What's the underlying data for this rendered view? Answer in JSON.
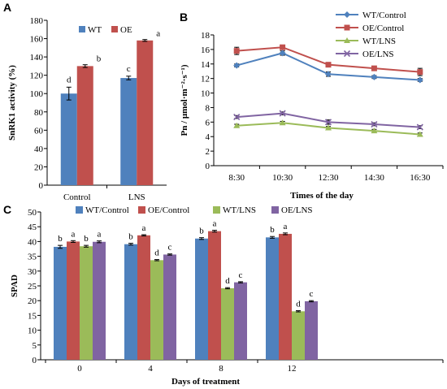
{
  "colors": {
    "WT_Control": "#4f81bd",
    "OE_Control": "#c0504d",
    "WT_LNS": "#9bbb59",
    "OE_LNS": "#8064a2",
    "axis": "#000000"
  },
  "chart_data": [
    {
      "panel": "A",
      "type": "bar",
      "categories": [
        "Control",
        "LNS"
      ],
      "series": [
        {
          "name": "WT",
          "values": [
            100,
            117
          ],
          "errors": [
            7,
            2
          ],
          "letters": [
            "d",
            "c"
          ]
        },
        {
          "name": "OE",
          "values": [
            130,
            158
          ],
          "errors": [
            1.5,
            1
          ],
          "letters": [
            "b",
            "a"
          ]
        }
      ],
      "ylabel": "SnRK1 activity (%)",
      "xlabel": "",
      "ylim": [
        0,
        180
      ],
      "yticks": [
        0,
        20,
        40,
        60,
        80,
        100,
        120,
        140,
        160,
        180
      ],
      "legend_position": "top"
    },
    {
      "panel": "B",
      "type": "line",
      "x": [
        "8:30",
        "10:30",
        "12:30",
        "14:30",
        "16:30"
      ],
      "series": [
        {
          "name": "WT/Control",
          "values": [
            13.8,
            15.5,
            12.6,
            12.2,
            11.8
          ],
          "errors": [
            0.2,
            0.3,
            0.3,
            0.2,
            0.2
          ],
          "marker": "diamond"
        },
        {
          "name": "OE/Control",
          "values": [
            15.8,
            16.3,
            13.9,
            13.4,
            12.9
          ],
          "errors": [
            0.5,
            0.2,
            0.3,
            0.3,
            0.5
          ],
          "marker": "square"
        },
        {
          "name": "WT/LNS",
          "values": [
            5.5,
            5.9,
            5.2,
            4.8,
            4.3
          ],
          "errors": [
            0.2,
            0.2,
            0.2,
            0.2,
            0.2
          ],
          "marker": "triangle"
        },
        {
          "name": "OE/LNS",
          "values": [
            6.7,
            7.2,
            6.0,
            5.7,
            5.3
          ],
          "errors": [
            0.2,
            0.2,
            0.3,
            0.2,
            0.2
          ],
          "marker": "x"
        }
      ],
      "ylabel": "Pn / μmol·m⁻²·s⁻¹)",
      "xlabel": "Times of the day",
      "ylim": [
        0,
        18
      ],
      "yticks": [
        0,
        2,
        4,
        6,
        8,
        10,
        12,
        14,
        16,
        18
      ],
      "legend_position": "top-right"
    },
    {
      "panel": "C",
      "type": "bar",
      "categories": [
        "0",
        "4",
        "8",
        "12"
      ],
      "series": [
        {
          "name": "WT/Control",
          "values": [
            38.2,
            39.1,
            41.0,
            41.4
          ],
          "errors": [
            0.5,
            0.3,
            0.3,
            0.3
          ],
          "letters": [
            "b",
            "b",
            "b",
            "b"
          ]
        },
        {
          "name": "OE/Control",
          "values": [
            40.0,
            42.1,
            43.5,
            42.6
          ],
          "errors": [
            0.3,
            0.2,
            0.3,
            0.3
          ],
          "letters": [
            "a",
            "a",
            "a",
            "a"
          ]
        },
        {
          "name": "WT/LNS",
          "values": [
            38.4,
            33.7,
            24.2,
            16.4
          ],
          "errors": [
            0.3,
            0.2,
            0.2,
            0.2
          ],
          "letters": [
            "b",
            "d",
            "d",
            "d"
          ]
        },
        {
          "name": "OE/LNS",
          "values": [
            39.9,
            35.6,
            26.2,
            19.8
          ],
          "errors": [
            0.3,
            0.2,
            0.2,
            0.2
          ],
          "letters": [
            "a",
            "c",
            "c",
            "c"
          ]
        }
      ],
      "ylabel": "SPAD",
      "xlabel": "Days of treatment",
      "ylim": [
        0,
        50
      ],
      "yticks": [
        0,
        5,
        10,
        15,
        20,
        25,
        30,
        35,
        40,
        45,
        50
      ],
      "legend_position": "top"
    }
  ]
}
